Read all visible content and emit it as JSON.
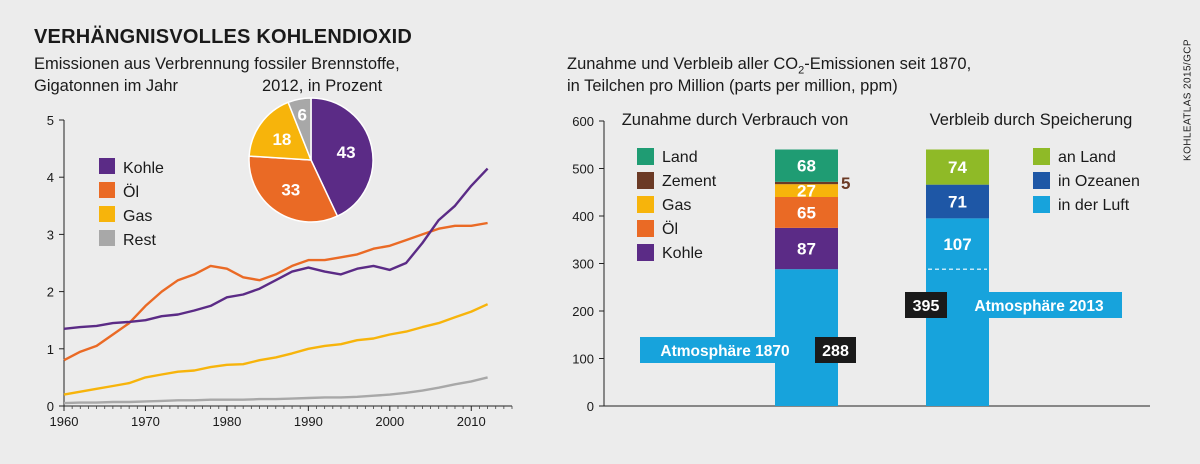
{
  "title": "VERHÄNGNISVOLLES KOHLENDIOXID",
  "credit": "KOHLEATLAS 2015/GCP",
  "left_subtitle_line1": "Emissionen aus Verbrennung fossiler Brennstoffe,",
  "left_subtitle_line2": "Gigatonnen im Jahr",
  "pie_subtitle": "2012, in Prozent",
  "right_subtitle_line1_pre": "Zunahme und Verbleib aller CO",
  "right_subtitle_line1_sub": "2",
  "right_subtitle_line1_post": "-Emissionen seit 1870,",
  "right_subtitle_line2": "in Teilchen pro Million (parts per million, ppm)",
  "colors": {
    "kohle": "#5b2b86",
    "oel": "#ea6a25",
    "gas": "#f7b40b",
    "rest": "#a8a8a8",
    "land": "#1f9c73",
    "zement": "#6b3a25",
    "an_land": "#8fba27",
    "ozeane": "#1e57a6",
    "luft": "#17a3dc",
    "label_dark": "#1a1a1a"
  },
  "chart_data": [
    {
      "type": "line",
      "xlim": [
        1960,
        2015
      ],
      "ylim": [
        0,
        5
      ],
      "x_ticks": [
        1960,
        1970,
        1980,
        1990,
        2000,
        2010
      ],
      "y_ticks": [
        0,
        1,
        2,
        3,
        4,
        5
      ],
      "legend_position": "left",
      "x": [
        1960,
        1962,
        1964,
        1966,
        1968,
        1970,
        1972,
        1974,
        1976,
        1978,
        1980,
        1982,
        1984,
        1986,
        1988,
        1990,
        1992,
        1994,
        1996,
        1998,
        2000,
        2002,
        2004,
        2006,
        2008,
        2010,
        2012
      ],
      "series": [
        {
          "name": "Kohle",
          "color_key": "kohle",
          "values": [
            1.35,
            1.38,
            1.4,
            1.45,
            1.47,
            1.5,
            1.57,
            1.6,
            1.67,
            1.75,
            1.9,
            1.95,
            2.05,
            2.2,
            2.35,
            2.42,
            2.35,
            2.3,
            2.4,
            2.45,
            2.38,
            2.5,
            2.85,
            3.25,
            3.5,
            3.85,
            4.15
          ]
        },
        {
          "name": "Öl",
          "color_key": "oel",
          "values": [
            0.8,
            0.95,
            1.05,
            1.25,
            1.45,
            1.75,
            2.0,
            2.2,
            2.3,
            2.45,
            2.4,
            2.25,
            2.2,
            2.3,
            2.45,
            2.55,
            2.55,
            2.6,
            2.65,
            2.75,
            2.8,
            2.9,
            3.0,
            3.1,
            3.15,
            3.15,
            3.2
          ]
        },
        {
          "name": "Gas",
          "color_key": "gas",
          "values": [
            0.2,
            0.25,
            0.3,
            0.35,
            0.4,
            0.5,
            0.55,
            0.6,
            0.62,
            0.68,
            0.72,
            0.73,
            0.8,
            0.85,
            0.92,
            1.0,
            1.05,
            1.08,
            1.15,
            1.18,
            1.25,
            1.3,
            1.38,
            1.45,
            1.55,
            1.65,
            1.78
          ]
        },
        {
          "name": "Rest",
          "color_key": "rest",
          "values": [
            0.05,
            0.06,
            0.06,
            0.07,
            0.07,
            0.08,
            0.09,
            0.1,
            0.1,
            0.11,
            0.11,
            0.11,
            0.12,
            0.12,
            0.13,
            0.14,
            0.15,
            0.15,
            0.16,
            0.18,
            0.2,
            0.23,
            0.27,
            0.32,
            0.38,
            0.43,
            0.5
          ]
        }
      ]
    },
    {
      "type": "pie",
      "title": "2012, in Prozent",
      "slices": [
        {
          "label": "Kohle",
          "value": 43,
          "color_key": "kohle"
        },
        {
          "label": "Öl",
          "value": 33,
          "color_key": "oel"
        },
        {
          "label": "Gas",
          "value": 18,
          "color_key": "gas"
        },
        {
          "label": "Rest",
          "value": 6,
          "color_key": "rest"
        }
      ]
    },
    {
      "type": "bar",
      "stacked": true,
      "ylim": [
        0,
        600
      ],
      "y_ticks": [
        0,
        100,
        200,
        300,
        400,
        500,
        600
      ],
      "bars": [
        {
          "title": "Zunahme durch Verbrauch von",
          "base_label": "Atmosphäre 1870",
          "segments": [
            {
              "label": "Atmosphäre 1870",
              "value": 288,
              "color_key": "luft"
            },
            {
              "label": "Kohle",
              "value": 87,
              "color_key": "kohle"
            },
            {
              "label": "Öl",
              "value": 65,
              "color_key": "oel"
            },
            {
              "label": "Gas",
              "value": 27,
              "color_key": "gas"
            },
            {
              "label": "Zement",
              "value": 5,
              "color_key": "zement"
            },
            {
              "label": "Land",
              "value": 68,
              "color_key": "land"
            }
          ],
          "legend": [
            {
              "label": "Land",
              "color_key": "land"
            },
            {
              "label": "Zement",
              "color_key": "zement"
            },
            {
              "label": "Gas",
              "color_key": "gas"
            },
            {
              "label": "Öl",
              "color_key": "oel"
            },
            {
              "label": "Kohle",
              "color_key": "kohle"
            }
          ]
        },
        {
          "title": "Verbleib durch Speicherung",
          "base_label": "Atmosphäre 2013",
          "base_value": 395,
          "marker_value": 288,
          "segments": [
            {
              "label": "in der Luft",
              "value": 395,
              "color_key": "luft",
              "display": 107
            },
            {
              "label": "in Ozeanen",
              "value": 71,
              "color_key": "ozeane"
            },
            {
              "label": "an Land",
              "value": 74,
              "color_key": "an_land"
            }
          ],
          "legend": [
            {
              "label": "an Land",
              "color_key": "an_land"
            },
            {
              "label": "in Ozeanen",
              "color_key": "ozeane"
            },
            {
              "label": "in der Luft",
              "color_key": "luft"
            }
          ]
        }
      ]
    }
  ]
}
